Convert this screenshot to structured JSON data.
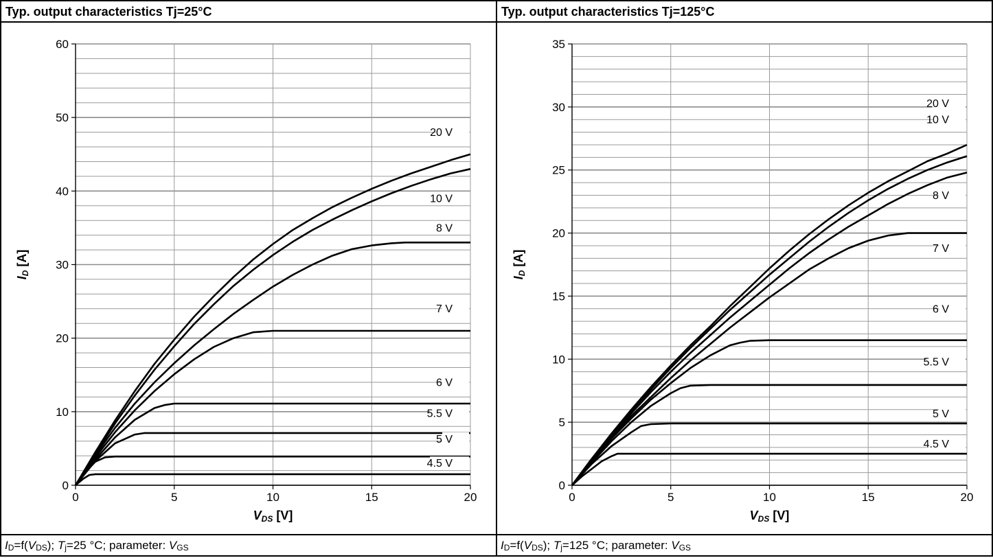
{
  "chart_data": [
    {
      "type": "line",
      "title": "Typ. output characteristics Tj=25°C",
      "caption": {
        "id": "I",
        "id_sub": "D",
        "f": "=f(",
        "v": "V",
        "v_sub": "DS",
        "sep1": "); ",
        "t": "T",
        "t_sub": "j",
        "rest": "=25 °C; parameter: ",
        "vg": "V",
        "vg_sub": "GS"
      },
      "xlabel": {
        "main": "V",
        "sub": "DS",
        "unit": " [V]"
      },
      "ylabel": {
        "main": "I",
        "sub": "D",
        "unit": " [A]"
      },
      "xlim": [
        0,
        20
      ],
      "ylim": [
        0,
        60
      ],
      "xticks": [
        0,
        5,
        10,
        15,
        20
      ],
      "yticks": [
        0,
        10,
        20,
        30,
        40,
        50,
        60
      ],
      "minor_y_step": 2,
      "grid": true,
      "series": [
        {
          "name": "20 V",
          "label_y": 47.5,
          "x": [
            0,
            1,
            2,
            3,
            4,
            5,
            6,
            7,
            8,
            9,
            10,
            11,
            12,
            13,
            14,
            15,
            16,
            17,
            18,
            19,
            20
          ],
          "y": [
            0,
            4.5,
            8.8,
            12.8,
            16.5,
            19.8,
            22.9,
            25.7,
            28.3,
            30.7,
            32.8,
            34.7,
            36.3,
            37.8,
            39.1,
            40.3,
            41.4,
            42.4,
            43.3,
            44.2,
            45.0
          ]
        },
        {
          "name": "10 V",
          "label_y": 38.5,
          "x": [
            0,
            1,
            2,
            3,
            4,
            5,
            6,
            7,
            8,
            9,
            10,
            11,
            12,
            13,
            14,
            15,
            16,
            17,
            18,
            19,
            20
          ],
          "y": [
            0,
            4.3,
            8.4,
            12.2,
            15.7,
            18.9,
            21.9,
            24.6,
            27.1,
            29.3,
            31.3,
            33.1,
            34.7,
            36.1,
            37.4,
            38.6,
            39.7,
            40.7,
            41.6,
            42.4,
            43.0
          ]
        },
        {
          "name": "8 V",
          "label_y": 34.5,
          "x": [
            0,
            1,
            2,
            3,
            4,
            5,
            6,
            7,
            8,
            9,
            10,
            11,
            12,
            13,
            14,
            15,
            16,
            16.7,
            18,
            20
          ],
          "y": [
            0,
            4.1,
            7.8,
            11.1,
            14.0,
            16.6,
            19.0,
            21.2,
            23.3,
            25.2,
            27.0,
            28.6,
            30.0,
            31.2,
            32.1,
            32.6,
            32.9,
            33.0,
            33.0,
            33.0
          ]
        },
        {
          "name": "7 V",
          "label_y": 23.5,
          "x": [
            0,
            1,
            2,
            3,
            4,
            5,
            6,
            7,
            8,
            9,
            10,
            12,
            15,
            20
          ],
          "y": [
            0,
            3.8,
            7.2,
            10.2,
            12.8,
            15.1,
            17.1,
            18.8,
            20.0,
            20.8,
            21.0,
            21.0,
            21.0,
            21.0
          ]
        },
        {
          "name": "6 V",
          "label_y": 13.5,
          "x": [
            0,
            1,
            2,
            3,
            4,
            4.5,
            5,
            6,
            10,
            20
          ],
          "y": [
            0,
            3.5,
            6.5,
            8.9,
            10.5,
            10.9,
            11.1,
            11.1,
            11.1,
            11.1
          ]
        },
        {
          "name": "5.5 V",
          "label_y": 9.3,
          "x": [
            0,
            1,
            2,
            3,
            3.5,
            5,
            10,
            20
          ],
          "y": [
            0,
            3.3,
            5.7,
            6.9,
            7.1,
            7.1,
            7.1,
            7.1
          ]
        },
        {
          "name": "5 V",
          "label_y": 5.8,
          "x": [
            0,
            0.5,
            1,
            1.5,
            2,
            3,
            10,
            20
          ],
          "y": [
            0,
            1.8,
            3.2,
            3.8,
            3.9,
            3.9,
            3.9,
            3.9
          ]
        },
        {
          "name": "4.5 V",
          "label_y": 2.5,
          "x": [
            0,
            0.4,
            0.7,
            1,
            2,
            10,
            20
          ],
          "y": [
            0,
            0.9,
            1.4,
            1.5,
            1.5,
            1.5,
            1.5
          ]
        }
      ]
    },
    {
      "type": "line",
      "title": "Typ. output characteristics Tj=125°C",
      "caption": {
        "id": "I",
        "id_sub": "D",
        "f": "=f(",
        "v": "V",
        "v_sub": "DS",
        "sep1": "); ",
        "t": "T",
        "t_sub": "j",
        "rest": "=125 °C; parameter: ",
        "vg": "V",
        "vg_sub": "GS"
      },
      "xlabel": {
        "main": "V",
        "sub": "DS",
        "unit": " [V]"
      },
      "ylabel": {
        "main": "I",
        "sub": "D",
        "unit": " [A]"
      },
      "xlim": [
        0,
        20
      ],
      "ylim": [
        0,
        35
      ],
      "xticks": [
        0,
        5,
        10,
        15,
        20
      ],
      "yticks": [
        0,
        5,
        10,
        15,
        20,
        25,
        30,
        35
      ],
      "minor_y_step": 1,
      "grid": true,
      "series": [
        {
          "name": "20 V",
          "label_y": 30.0,
          "x": [
            0,
            1,
            2,
            3,
            4,
            5,
            6,
            7,
            8,
            9,
            10,
            11,
            12,
            13,
            14,
            15,
            16,
            17,
            18,
            19,
            20
          ],
          "y": [
            0,
            2.1,
            4.1,
            6.0,
            7.8,
            9.5,
            11.1,
            12.6,
            14.2,
            15.7,
            17.2,
            18.6,
            19.9,
            21.1,
            22.2,
            23.2,
            24.1,
            24.9,
            25.7,
            26.3,
            27.0
          ]
        },
        {
          "name": "10 V",
          "label_y": 28.7,
          "x": [
            0,
            1,
            2,
            3,
            4,
            5,
            6,
            7,
            8,
            9,
            10,
            11,
            12,
            13,
            14,
            15,
            16,
            17,
            18,
            19,
            20
          ],
          "y": [
            0,
            2.1,
            4.0,
            5.9,
            7.6,
            9.3,
            10.9,
            12.4,
            13.9,
            15.3,
            16.7,
            18.0,
            19.3,
            20.5,
            21.6,
            22.6,
            23.5,
            24.3,
            25.0,
            25.6,
            26.1
          ]
        },
        {
          "name": "8 V",
          "label_y": 22.7,
          "x": [
            0,
            1,
            2,
            3,
            4,
            5,
            6,
            7,
            8,
            9,
            10,
            11,
            12,
            13,
            14,
            15,
            16,
            17,
            18,
            19,
            20
          ],
          "y": [
            0,
            2.0,
            3.9,
            5.7,
            7.4,
            9.0,
            10.5,
            11.9,
            13.3,
            14.6,
            15.9,
            17.2,
            18.4,
            19.5,
            20.5,
            21.4,
            22.3,
            23.1,
            23.8,
            24.4,
            24.8
          ]
        },
        {
          "name": "7 V",
          "label_y": 18.5,
          "x": [
            0,
            1,
            2,
            3,
            4,
            5,
            6,
            7,
            8,
            9,
            10,
            11,
            12,
            13,
            14,
            15,
            16,
            17,
            18,
            20
          ],
          "y": [
            0,
            2.0,
            3.8,
            5.5,
            7.0,
            8.5,
            9.9,
            11.2,
            12.5,
            13.7,
            14.9,
            16.0,
            17.1,
            18.0,
            18.8,
            19.4,
            19.8,
            20.0,
            20.0,
            20.0
          ]
        },
        {
          "name": "6 V",
          "label_y": 13.7,
          "x": [
            0,
            1,
            2,
            3,
            4,
            5,
            6,
            7,
            8,
            8.5,
            9,
            10,
            12,
            20
          ],
          "y": [
            0,
            1.9,
            3.7,
            5.3,
            6.8,
            8.1,
            9.3,
            10.3,
            11.1,
            11.3,
            11.45,
            11.5,
            11.5,
            11.5
          ]
        },
        {
          "name": "5.5 V",
          "label_y": 9.5,
          "x": [
            0,
            1,
            2,
            3,
            4,
            5,
            5.5,
            6,
            7,
            10,
            20
          ],
          "y": [
            0,
            1.8,
            3.5,
            5.0,
            6.3,
            7.3,
            7.7,
            7.9,
            7.95,
            7.95,
            7.95
          ]
        },
        {
          "name": "5 V",
          "label_y": 5.4,
          "x": [
            0,
            1,
            2,
            3,
            3.5,
            4,
            5,
            10,
            20
          ],
          "y": [
            0,
            1.7,
            3.1,
            4.2,
            4.7,
            4.85,
            4.9,
            4.9,
            4.9
          ]
        },
        {
          "name": "4.5 V",
          "label_y": 3.0,
          "x": [
            0,
            0.5,
            1,
            1.5,
            2,
            2.3,
            3,
            10,
            20
          ],
          "y": [
            0,
            0.7,
            1.3,
            1.9,
            2.3,
            2.5,
            2.5,
            2.5,
            2.5
          ]
        }
      ]
    }
  ]
}
